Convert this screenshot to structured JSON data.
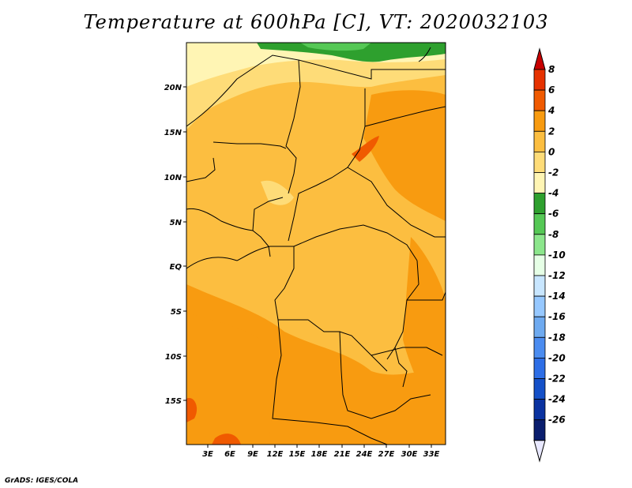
{
  "title": "Temperature at 600hPa [C], VT: 2020032103",
  "footer": "GrADS: IGES/COLA",
  "map": {
    "variable": "Temperature",
    "level": "600hPa",
    "units": "C",
    "valid_time": "2020032103",
    "lon_labels": [
      "3E",
      "6E",
      "9E",
      "12E",
      "15E",
      "18E",
      "21E",
      "24E",
      "27E",
      "30E",
      "33E"
    ],
    "lat_labels": [
      "20N",
      "15N",
      "10N",
      "5N",
      "EQ",
      "5S",
      "10S",
      "15S"
    ]
  },
  "colorbar": {
    "labels": [
      "8",
      "6",
      "4",
      "2",
      "0",
      "-2",
      "-4",
      "-6",
      "-8",
      "-10",
      "-12",
      "-14",
      "-16",
      "-18",
      "-20",
      "-22",
      "-24",
      "-26"
    ],
    "colors": [
      "#c80000",
      "#e63200",
      "#f05a00",
      "#f89b10",
      "#fcbe40",
      "#fedc78",
      "#fff5b4",
      "#2ea02e",
      "#55c855",
      "#8ce68c",
      "#e6ffe6",
      "#c8e6ff",
      "#96c8ff",
      "#6eaaf0",
      "#4b8cf0",
      "#2d6ee6",
      "#1450c8",
      "#0a32a0",
      "#0a1e6e",
      "#e8e8ff"
    ]
  }
}
